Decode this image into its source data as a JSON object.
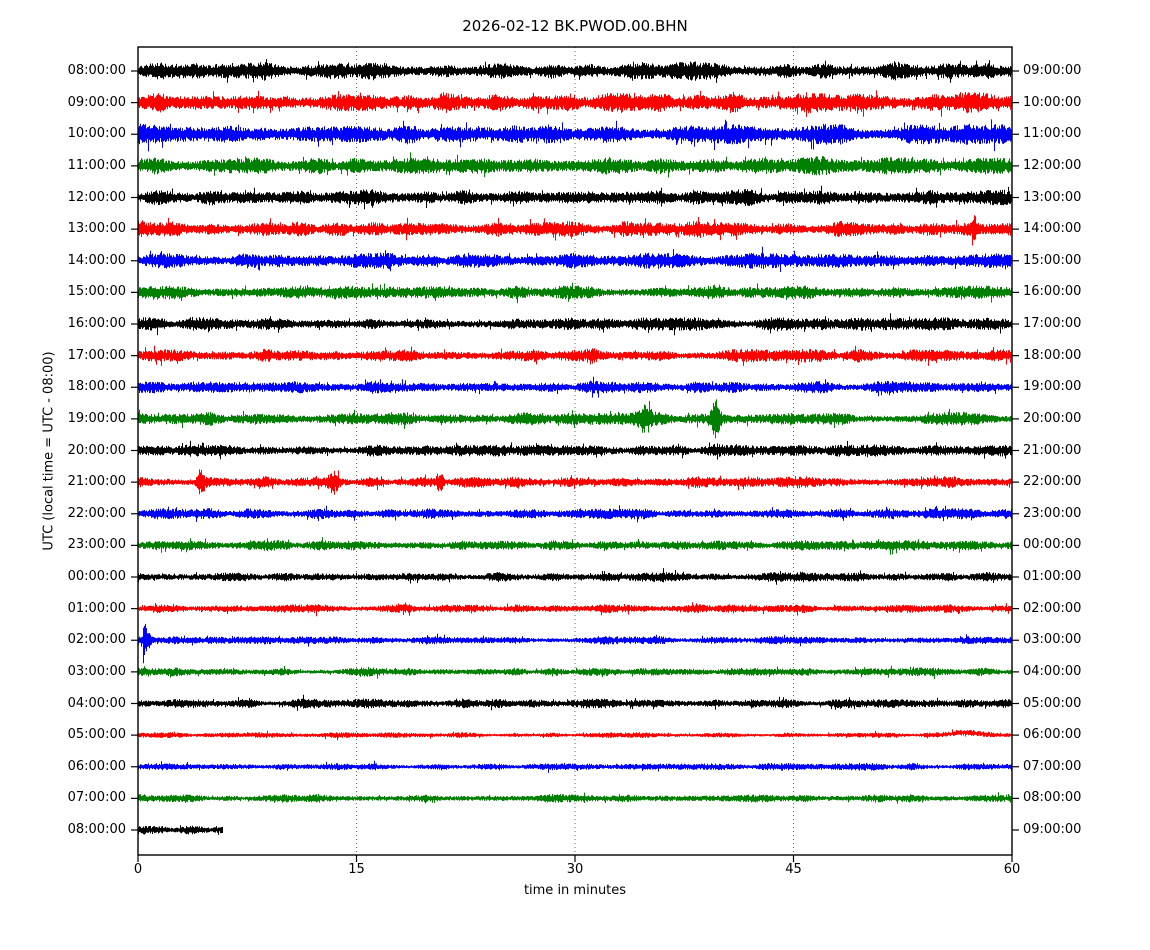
{
  "title": "2026-02-12 BK.PWOD.00.BHN",
  "xlabel": "time in minutes",
  "ylabel": "UTC (local time = UTC - 08:00)",
  "chart_data": {
    "type": "line",
    "subtype": "seismogram-helicorder-dayplot",
    "date": "2026-02-12",
    "station_id": "BK.PWOD.00.BHN",
    "xlabel": "time in minutes",
    "ylabel": "UTC (local time = UTC - 08:00)",
    "xlim": [
      0,
      60
    ],
    "x_ticks": [
      0,
      15,
      30,
      45,
      60
    ],
    "grid": "vertical-dotted-at-15-30-45",
    "minutes_per_row": 60,
    "color_cycle": [
      "#000000",
      "#ff0000",
      "#0000ff",
      "#008000"
    ],
    "rows": [
      {
        "left_label": "08:00:00",
        "right_label": "09:00:00",
        "color": "#000000",
        "amp": 6.5,
        "duration": 60,
        "seed": 101,
        "events": []
      },
      {
        "left_label": "09:00:00",
        "right_label": "10:00:00",
        "color": "#ff0000",
        "amp": 7.0,
        "duration": 60,
        "seed": 202,
        "events": []
      },
      {
        "left_label": "10:00:00",
        "right_label": "11:00:00",
        "color": "#0000ff",
        "amp": 7.0,
        "duration": 60,
        "seed": 303,
        "events": []
      },
      {
        "left_label": "11:00:00",
        "right_label": "12:00:00",
        "color": "#008000",
        "amp": 6.0,
        "duration": 60,
        "seed": 404,
        "events": [
          {
            "type": "burst",
            "t": 8.5,
            "amp": 2.5,
            "sigma": 0.5
          },
          {
            "type": "burst",
            "t": 47.0,
            "amp": 2.0,
            "sigma": 0.5
          }
        ]
      },
      {
        "left_label": "12:00:00",
        "right_label": "13:00:00",
        "color": "#000000",
        "amp": 5.5,
        "duration": 60,
        "seed": 505,
        "events": []
      },
      {
        "left_label": "13:00:00",
        "right_label": "14:00:00",
        "color": "#ff0000",
        "amp": 5.5,
        "duration": 60,
        "seed": 606,
        "events": [
          {
            "type": "burst",
            "t": 57.4,
            "amp": 8.0,
            "sigma": 0.12
          }
        ]
      },
      {
        "left_label": "14:00:00",
        "right_label": "15:00:00",
        "color": "#0000ff",
        "amp": 5.5,
        "duration": 60,
        "seed": 707,
        "events": []
      },
      {
        "left_label": "15:00:00",
        "right_label": "16:00:00",
        "color": "#008000",
        "amp": 5.0,
        "duration": 60,
        "seed": 808,
        "events": []
      },
      {
        "left_label": "16:00:00",
        "right_label": "17:00:00",
        "color": "#000000",
        "amp": 4.5,
        "duration": 60,
        "seed": 909,
        "events": []
      },
      {
        "left_label": "17:00:00",
        "right_label": "18:00:00",
        "color": "#ff0000",
        "amp": 4.5,
        "duration": 60,
        "seed": 1010,
        "events": [
          {
            "type": "burst",
            "t": 31.2,
            "amp": 4.0,
            "sigma": 0.25
          }
        ]
      },
      {
        "left_label": "18:00:00",
        "right_label": "19:00:00",
        "color": "#0000ff",
        "amp": 4.2,
        "duration": 60,
        "seed": 1111,
        "events": []
      },
      {
        "left_label": "19:00:00",
        "right_label": "20:00:00",
        "color": "#008000",
        "amp": 4.5,
        "duration": 60,
        "seed": 1212,
        "events": [
          {
            "type": "burst",
            "t": 34.8,
            "amp": 8.0,
            "sigma": 0.3
          },
          {
            "type": "burst",
            "t": 39.6,
            "amp": 14.0,
            "sigma": 0.22
          }
        ]
      },
      {
        "left_label": "20:00:00",
        "right_label": "21:00:00",
        "color": "#000000",
        "amp": 4.2,
        "duration": 60,
        "seed": 1313,
        "events": []
      },
      {
        "left_label": "21:00:00",
        "right_label": "22:00:00",
        "color": "#ff0000",
        "amp": 4.0,
        "duration": 60,
        "seed": 1414,
        "events": [
          {
            "type": "burst",
            "t": 4.3,
            "amp": 10.0,
            "sigma": 0.18
          },
          {
            "type": "burst",
            "t": 13.4,
            "amp": 8.0,
            "sigma": 0.25
          },
          {
            "type": "burst",
            "t": 20.7,
            "amp": 8.0,
            "sigma": 0.18
          }
        ]
      },
      {
        "left_label": "22:00:00",
        "right_label": "23:00:00",
        "color": "#0000ff",
        "amp": 3.8,
        "duration": 60,
        "seed": 1515,
        "events": []
      },
      {
        "left_label": "23:00:00",
        "right_label": "00:00:00",
        "color": "#008000",
        "amp": 3.6,
        "duration": 60,
        "seed": 1616,
        "events": []
      },
      {
        "left_label": "00:00:00",
        "right_label": "01:00:00",
        "color": "#000000",
        "amp": 3.5,
        "duration": 60,
        "seed": 1717,
        "events": []
      },
      {
        "left_label": "01:00:00",
        "right_label": "02:00:00",
        "color": "#ff0000",
        "amp": 3.0,
        "duration": 60,
        "seed": 1818,
        "events": []
      },
      {
        "left_label": "02:00:00",
        "right_label": "03:00:00",
        "color": "#0000ff",
        "amp": 3.0,
        "duration": 60,
        "seed": 1919,
        "events": [
          {
            "type": "decay",
            "t": 0.3,
            "amp": 26.0,
            "tau": 0.28
          }
        ]
      },
      {
        "left_label": "03:00:00",
        "right_label": "04:00:00",
        "color": "#008000",
        "amp": 3.0,
        "duration": 60,
        "seed": 2020,
        "events": []
      },
      {
        "left_label": "04:00:00",
        "right_label": "05:00:00",
        "color": "#000000",
        "amp": 3.5,
        "duration": 60,
        "seed": 2121,
        "events": []
      },
      {
        "left_label": "05:00:00",
        "right_label": "06:00:00",
        "color": "#ff0000",
        "amp": 2.0,
        "duration": 60,
        "seed": 2222,
        "events": [
          {
            "type": "offset",
            "t": 56.8,
            "amp": -2.5,
            "sigma": 0.9
          }
        ]
      },
      {
        "left_label": "06:00:00",
        "right_label": "07:00:00",
        "color": "#0000ff",
        "amp": 2.5,
        "duration": 60,
        "seed": 2323,
        "events": []
      },
      {
        "left_label": "07:00:00",
        "right_label": "08:00:00",
        "color": "#008000",
        "amp": 3.0,
        "duration": 60,
        "seed": 2424,
        "events": []
      },
      {
        "left_label": "08:00:00",
        "right_label": "09:00:00",
        "color": "#000000",
        "amp": 3.5,
        "duration": 5.8,
        "seed": 2525,
        "events": []
      }
    ]
  }
}
